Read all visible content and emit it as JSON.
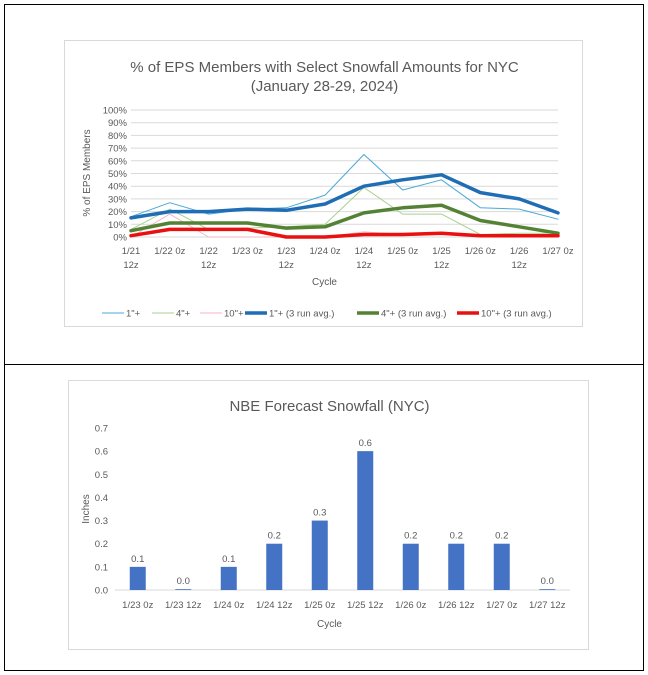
{
  "chart_data": [
    {
      "type": "line",
      "title": "% of EPS Members with Select Snowfall Amounts for NYC",
      "subtitle": "(January 28-29, 2024)",
      "xlabel": "Cycle",
      "ylabel": "% of EPS Members",
      "ylim": [
        0,
        100
      ],
      "yticks": [
        "0%",
        "10%",
        "20%",
        "30%",
        "40%",
        "50%",
        "60%",
        "70%",
        "80%",
        "90%",
        "100%"
      ],
      "grid": true,
      "legend_position": "bottom",
      "categories": [
        "1/21 12z",
        "1/22 0z",
        "1/22 12z",
        "1/23 0z",
        "1/23 12z",
        "1/24 0z",
        "1/24 12z",
        "1/25 0z",
        "1/25 12z",
        "1/26 0z",
        "1/26 12z",
        "1/27 0z"
      ],
      "category_labels": [
        [
          "1/21",
          "12z"
        ],
        [
          "1/22 0z",
          ""
        ],
        [
          "1/22",
          "12z"
        ],
        [
          "1/23 0z",
          ""
        ],
        [
          "1/23",
          "12z"
        ],
        [
          "1/24 0z",
          ""
        ],
        [
          "1/24",
          "12z"
        ],
        [
          "1/25 0z",
          ""
        ],
        [
          "1/25",
          "12z"
        ],
        [
          "1/26 0z",
          ""
        ],
        [
          "1/26",
          "12z"
        ],
        [
          "1/27 0z",
          ""
        ]
      ],
      "series": [
        {
          "name": "1\"+",
          "color": "#49a8d8",
          "width": 1,
          "values": [
            16,
            27,
            18,
            22,
            23,
            33,
            65,
            37,
            45,
            23,
            22,
            14
          ]
        },
        {
          "name": "4\"+",
          "color": "#a9d18e",
          "width": 1,
          "values": [
            6,
            22,
            6,
            7,
            8,
            10,
            39,
            18,
            18,
            2,
            3,
            3
          ]
        },
        {
          "name": "10\"+",
          "color": "#f4b6c2",
          "width": 1,
          "values": [
            0,
            18,
            0,
            0,
            0,
            0,
            4,
            2,
            2,
            0,
            2,
            0
          ]
        },
        {
          "name": "1\"+ (3 run avg.)",
          "color": "#1f6db5",
          "width": 3.5,
          "values": [
            15,
            20,
            20,
            22,
            21,
            26,
            40,
            45,
            49,
            35,
            30,
            19
          ]
        },
        {
          "name": "4\"+ (3 run avg.)",
          "color": "#548235",
          "width": 3.5,
          "values": [
            5,
            11,
            11,
            11,
            7,
            8,
            19,
            23,
            25,
            13,
            8,
            3
          ]
        },
        {
          "name": "10\"+ (3 run avg.)",
          "color": "#e81010",
          "width": 3.5,
          "values": [
            1,
            6,
            6,
            6,
            0,
            0,
            2,
            2,
            3,
            1,
            1,
            1
          ]
        }
      ]
    },
    {
      "type": "bar",
      "title": "NBE Forecast Snowfall (NYC)",
      "xlabel": "Cycle",
      "ylabel": "Inches",
      "ylim": [
        0,
        0.7
      ],
      "yticks": [
        "0.0",
        "0.1",
        "0.2",
        "0.3",
        "0.4",
        "0.5",
        "0.6",
        "0.7"
      ],
      "grid": false,
      "bar_color": "#4472c4",
      "categories": [
        "1/23 0z",
        "1/23 12z",
        "1/24 0z",
        "1/24 12z",
        "1/25 0z",
        "1/25 12z",
        "1/26 0z",
        "1/26 12z",
        "1/27 0z",
        "1/27 12z"
      ],
      "values": [
        0.1,
        0.0,
        0.1,
        0.2,
        0.3,
        0.6,
        0.2,
        0.2,
        0.2,
        0.0
      ],
      "data_labels": [
        "0.1",
        "0.0",
        "0.1",
        "0.2",
        "0.3",
        "0.6",
        "0.2",
        "0.2",
        "0.2",
        "0.0"
      ]
    }
  ]
}
